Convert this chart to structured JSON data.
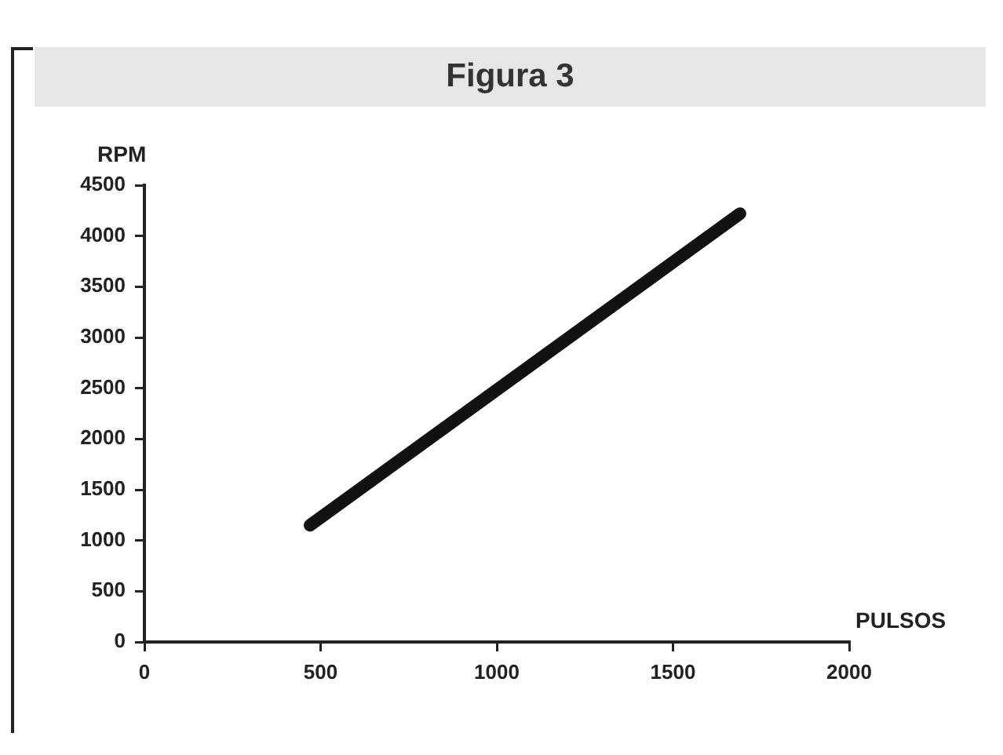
{
  "chart_data": {
    "type": "line",
    "title": "Figura 3",
    "xlabel": "PULSOS",
    "ylabel": "RPM",
    "x": [
      470,
      1690
    ],
    "series": [
      {
        "color": "#111111",
        "values": [
          1150,
          4220
        ]
      }
    ],
    "xlim": [
      0,
      2000
    ],
    "xticks": [
      0,
      500,
      1000,
      1500,
      2000
    ],
    "ylim": [
      0,
      4500
    ],
    "yticks": [
      0,
      500,
      1000,
      1500,
      2000,
      2500,
      3000,
      3500,
      4000,
      4500
    ],
    "grid": false,
    "legend": false,
    "marker": "none",
    "line_style": "solid"
  }
}
